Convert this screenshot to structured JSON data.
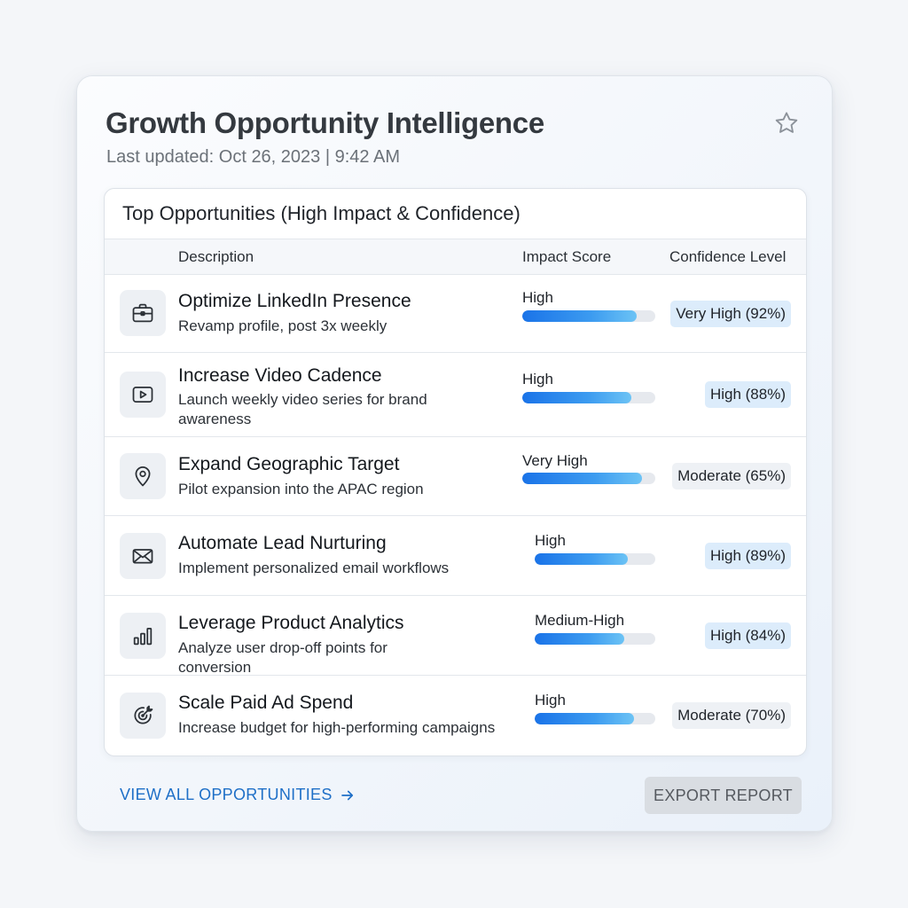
{
  "header": {
    "title": "Growth Opportunity Intelligence",
    "updated": "Last updated: Oct 26, 2023 | 9:42 AM",
    "favorite_icon": "star-icon"
  },
  "panel": {
    "title": "Top Opportunities (High Impact & Confidence)",
    "columns": {
      "description": "Description",
      "impact": "Impact Score",
      "confidence": "Confidence Level"
    },
    "rows": [
      {
        "icon": "briefcase-icon",
        "title": "Optimize LinkedIn Presence",
        "desc": "Revamp profile, post 3x weekly",
        "impact_label": "High",
        "impact_fraction": 0.86,
        "confidence": "Very High (92%)",
        "confidence_color": "#dcecfb"
      },
      {
        "icon": "video-icon",
        "title": "Increase Video Cadence",
        "desc": "Launch weekly video series for brand awareness",
        "impact_label": "High",
        "impact_fraction": 0.82,
        "confidence": "High (88%)",
        "confidence_color": "#dcecfb"
      },
      {
        "icon": "map-pin-icon",
        "title": "Expand Geographic Target",
        "desc": "Pilot expansion into the APAC region",
        "impact_label": "Very High",
        "impact_fraction": 0.9,
        "confidence": "Moderate (65%)",
        "confidence_color": "#eef1f5"
      },
      {
        "icon": "mail-icon",
        "title": "Automate Lead Nurturing",
        "desc": "Implement personalized email workflows",
        "impact_label": "High",
        "impact_fraction": 0.77,
        "confidence": "High (89%)",
        "confidence_color": "#dcecfb"
      },
      {
        "icon": "bar-chart-icon",
        "title": "Leverage Product Analytics",
        "desc": "Analyze user drop-off points for conversion",
        "impact_label": "Medium-High",
        "impact_fraction": 0.74,
        "confidence": "High (84%)",
        "confidence_color": "#dcecfb"
      },
      {
        "icon": "target-icon",
        "title": "Scale Paid Ad Spend",
        "desc": "Increase budget for high-performing campaigns",
        "impact_label": "High",
        "impact_fraction": 0.82,
        "confidence": "Moderate (70%)",
        "confidence_color": "#eef1f5"
      }
    ]
  },
  "footer": {
    "view_all": "VIEW ALL OPPORTUNITIES",
    "export": "EXPORT REPORT"
  },
  "colors": {
    "accent": "#1e6fc7",
    "bar": "#1a73e8"
  }
}
